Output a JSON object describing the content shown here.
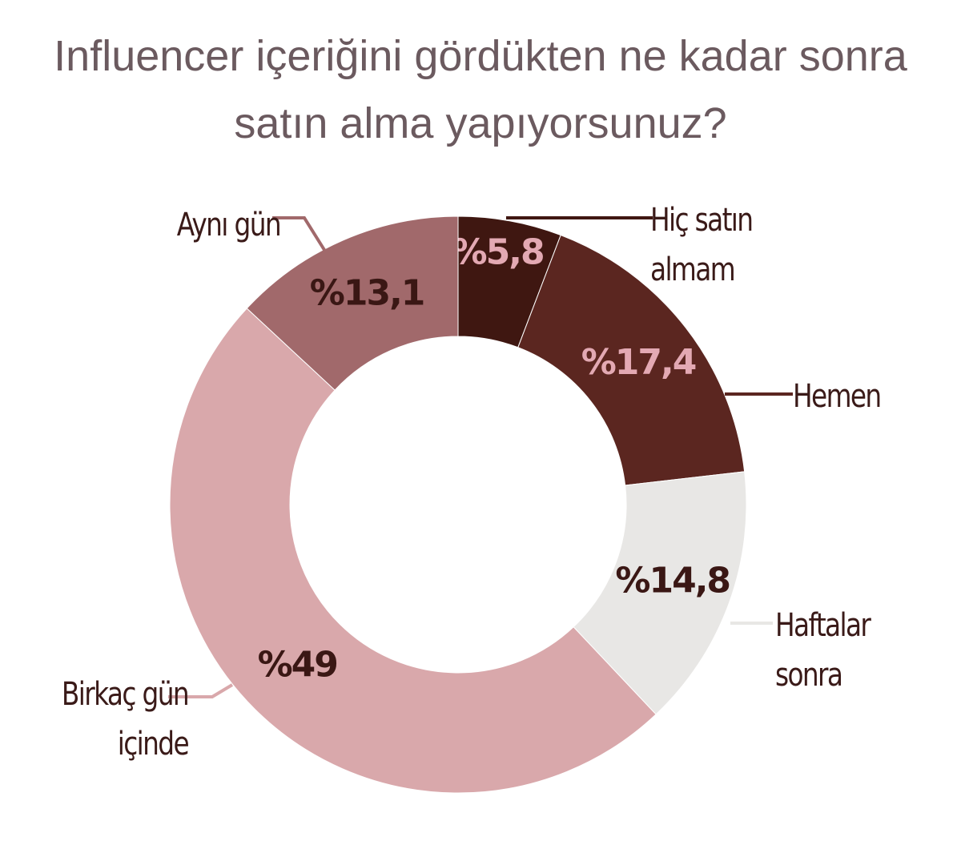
{
  "chart_data": {
    "type": "donut",
    "title": "Influencer içeriğini gördükten ne kadar sonra satın alma yapıyorsunuz?",
    "categories": [
      "Hiç satın almam",
      "Hemen",
      "Haftalar sonra",
      "Birkaç gün içinde",
      "Aynı gün"
    ],
    "values": [
      5.8,
      17.4,
      14.8,
      49,
      13.1
    ],
    "value_labels": [
      "%5,8",
      "%17,4",
      "%14,8",
      "%49",
      "%13,1"
    ],
    "colors": [
      "#3f1711",
      "#5b2620",
      "#e8e7e5",
      "#d9a8ab",
      "#a1696b"
    ]
  }
}
